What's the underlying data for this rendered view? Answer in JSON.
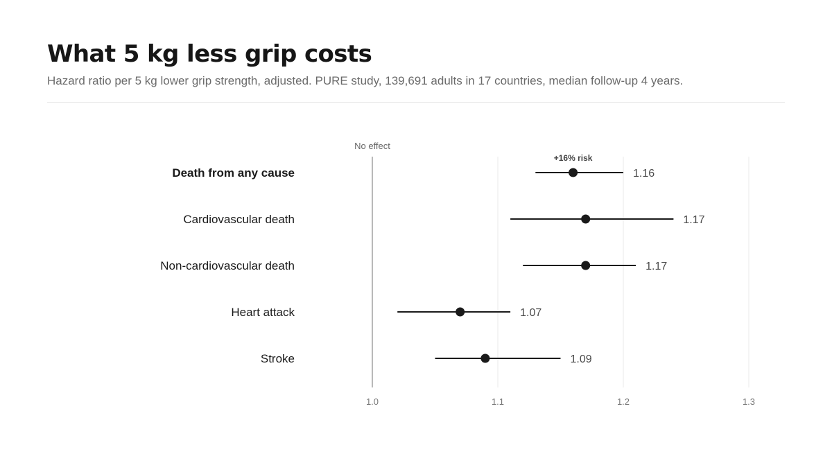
{
  "title": "What 5 kg less grip costs",
  "subtitle": "Hazard ratio per 5 kg lower grip strength, adjusted. PURE study, 139,691 adults in 17 countries, median follow-up 4 years.",
  "colors": {
    "point": "#1a1a1a",
    "interval": "#1a1a1a",
    "reference_line": "#8a8a8a",
    "gridline": "#e8e8e8"
  },
  "chart_data": {
    "type": "forest",
    "x_axis": {
      "min": 1.0,
      "max": 1.3,
      "ticks": [
        1.0,
        1.1,
        1.2,
        1.3
      ],
      "tick_labels": [
        "1.0",
        "1.1",
        "1.2",
        "1.3"
      ]
    },
    "reference": {
      "value": 1.0,
      "label": "No effect"
    },
    "grid": true,
    "rows": [
      {
        "label": "Death from any cause",
        "hr": 1.16,
        "lower": 1.13,
        "upper": 1.2,
        "value_label": "1.16",
        "emphasis": true,
        "annotation": "+16% risk"
      },
      {
        "label": "Cardiovascular death",
        "hr": 1.17,
        "lower": 1.11,
        "upper": 1.24,
        "value_label": "1.17",
        "emphasis": false
      },
      {
        "label": "Non-cardiovascular death",
        "hr": 1.17,
        "lower": 1.12,
        "upper": 1.21,
        "value_label": "1.17",
        "emphasis": false
      },
      {
        "label": "Heart attack",
        "hr": 1.07,
        "lower": 1.02,
        "upper": 1.11,
        "value_label": "1.07",
        "emphasis": false
      },
      {
        "label": "Stroke",
        "hr": 1.09,
        "lower": 1.05,
        "upper": 1.15,
        "value_label": "1.09",
        "emphasis": false
      }
    ]
  }
}
